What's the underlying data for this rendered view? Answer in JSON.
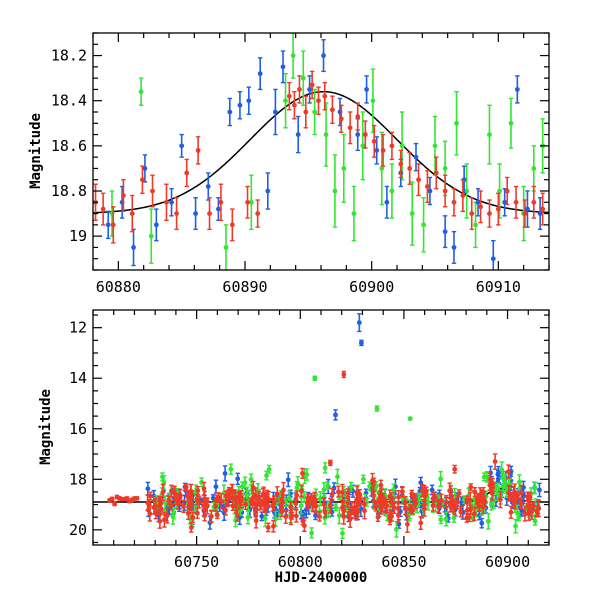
{
  "colors": {
    "green": "#33e633",
    "blue": "#1f5fe6",
    "red": "#f03a28",
    "model": "#000000"
  },
  "chart_data": [
    {
      "type": "scatter",
      "panel": "top-zoom",
      "title": "",
      "xlabel": "",
      "ylabel": "Magnitude",
      "xlim": [
        60878,
        60914
      ],
      "ylim": [
        19.15,
        18.1
      ],
      "y_inverted": true,
      "xticks": [
        60880,
        60890,
        60900,
        60910
      ],
      "yticks": [
        18.2,
        18.4,
        18.6,
        18.8,
        19
      ],
      "ytick_labels": [
        "18.2",
        "18.4",
        "18.6",
        "18.8",
        "19"
      ],
      "model": {
        "name": "",
        "peak_x": 60896.2,
        "peak_mag": 18.36,
        "baseline_mag": 18.9,
        "sigma_days": 5.8
      },
      "series": [
        {
          "color": "green",
          "points": [
            [
              60881.8,
              18.36,
              0.06
            ],
            [
              60879.5,
              18.9,
              0.1
            ],
            [
              60882.6,
              19.0,
              0.12
            ],
            [
              60888.5,
              19.05,
              0.1
            ],
            [
              60890.5,
              18.85,
              0.12
            ],
            [
              60893.2,
              18.4,
              0.12
            ],
            [
              60893.8,
              18.2,
              0.1
            ],
            [
              60894.6,
              18.3,
              0.12
            ],
            [
              60895.5,
              18.45,
              0.1
            ],
            [
              60896.4,
              18.55,
              0.14
            ],
            [
              60897.1,
              18.8,
              0.16
            ],
            [
              60897.8,
              18.7,
              0.15
            ],
            [
              60898.6,
              18.9,
              0.12
            ],
            [
              60899.3,
              18.6,
              0.15
            ],
            [
              60900.1,
              18.4,
              0.14
            ],
            [
              60900.8,
              18.7,
              0.16
            ],
            [
              60901.6,
              18.8,
              0.12
            ],
            [
              60902.4,
              18.6,
              0.15
            ],
            [
              60903.2,
              18.9,
              0.14
            ],
            [
              60904.1,
              18.95,
              0.12
            ],
            [
              60905.0,
              18.6,
              0.13
            ],
            [
              60905.8,
              18.7,
              0.12
            ],
            [
              60906.7,
              18.5,
              0.14
            ],
            [
              60907.5,
              18.8,
              0.12
            ],
            [
              60908.2,
              18.95,
              0.1
            ],
            [
              60909.3,
              18.55,
              0.13
            ],
            [
              60910.1,
              18.8,
              0.12
            ],
            [
              60911.0,
              18.5,
              0.11
            ],
            [
              60912.0,
              18.9,
              0.12
            ],
            [
              60912.8,
              18.7,
              0.1
            ],
            [
              60913.5,
              18.6,
              0.12
            ]
          ]
        },
        {
          "color": "blue",
          "points": [
            [
              60879.2,
              18.95,
              0.06
            ],
            [
              60880.3,
              18.85,
              0.07
            ],
            [
              60881.2,
              19.05,
              0.08
            ],
            [
              60882.1,
              18.7,
              0.06
            ],
            [
              60883.0,
              18.95,
              0.07
            ],
            [
              60884.2,
              18.85,
              0.06
            ],
            [
              60885.0,
              18.6,
              0.05
            ],
            [
              60886.1,
              18.9,
              0.07
            ],
            [
              60887.1,
              18.78,
              0.06
            ],
            [
              60887.9,
              18.88,
              0.05
            ],
            [
              60888.8,
              18.45,
              0.06
            ],
            [
              60889.6,
              18.42,
              0.06
            ],
            [
              60890.3,
              18.4,
              0.06
            ],
            [
              60891.2,
              18.28,
              0.07
            ],
            [
              60891.8,
              18.8,
              0.08
            ],
            [
              60892.4,
              18.45,
              0.1
            ],
            [
              60893.0,
              18.25,
              0.07
            ],
            [
              60894.2,
              18.55,
              0.08
            ],
            [
              60895.1,
              18.35,
              0.06
            ],
            [
              60896.2,
              18.2,
              0.07
            ],
            [
              60897.5,
              18.45,
              0.06
            ],
            [
              60898.9,
              18.55,
              0.07
            ],
            [
              60899.6,
              18.35,
              0.06
            ],
            [
              60900.4,
              18.62,
              0.06
            ],
            [
              60901.2,
              18.85,
              0.07
            ],
            [
              60902.3,
              18.72,
              0.06
            ],
            [
              60903.5,
              18.65,
              0.06
            ],
            [
              60904.6,
              18.8,
              0.06
            ],
            [
              60905.8,
              18.98,
              0.07
            ],
            [
              60906.5,
              19.05,
              0.07
            ],
            [
              60907.3,
              18.75,
              0.06
            ],
            [
              60908.4,
              18.85,
              0.06
            ],
            [
              60909.6,
              19.1,
              0.08
            ],
            [
              60910.5,
              18.85,
              0.06
            ],
            [
              60911.5,
              18.35,
              0.06
            ],
            [
              60912.3,
              18.88,
              0.08
            ],
            [
              60913.3,
              18.9,
              0.07
            ]
          ]
        },
        {
          "color": "red",
          "points": [
            [
              60878.2,
              18.85,
              0.08
            ],
            [
              60878.8,
              18.88,
              0.07
            ],
            [
              60879.6,
              18.95,
              0.08
            ],
            [
              60880.4,
              18.82,
              0.07
            ],
            [
              60881.1,
              18.9,
              0.08
            ],
            [
              60881.9,
              18.75,
              0.06
            ],
            [
              60882.7,
              18.8,
              0.07
            ],
            [
              60883.8,
              18.85,
              0.08
            ],
            [
              60884.6,
              18.9,
              0.07
            ],
            [
              60885.4,
              18.72,
              0.06
            ],
            [
              60886.3,
              18.62,
              0.06
            ],
            [
              60887.2,
              18.9,
              0.07
            ],
            [
              60888.1,
              18.85,
              0.08
            ],
            [
              60889.0,
              18.95,
              0.07
            ],
            [
              60890.2,
              18.85,
              0.07
            ],
            [
              60891.0,
              18.9,
              0.06
            ],
            [
              60893.5,
              18.38,
              0.06
            ],
            [
              60893.9,
              18.42,
              0.06
            ],
            [
              60894.3,
              18.35,
              0.06
            ],
            [
              60894.8,
              18.45,
              0.07
            ],
            [
              60895.3,
              18.33,
              0.06
            ],
            [
              60895.8,
              18.4,
              0.06
            ],
            [
              60896.3,
              18.38,
              0.06
            ],
            [
              60896.9,
              18.44,
              0.06
            ],
            [
              60897.6,
              18.48,
              0.06
            ],
            [
              60898.3,
              18.52,
              0.07
            ],
            [
              60898.9,
              18.47,
              0.06
            ],
            [
              60899.5,
              18.55,
              0.06
            ],
            [
              60900.2,
              18.58,
              0.07
            ],
            [
              60900.9,
              18.62,
              0.07
            ],
            [
              60901.6,
              18.6,
              0.06
            ],
            [
              60902.3,
              18.68,
              0.06
            ],
            [
              60903.0,
              18.7,
              0.07
            ],
            [
              60903.7,
              18.75,
              0.07
            ],
            [
              60904.4,
              18.78,
              0.07
            ],
            [
              60905.1,
              18.72,
              0.07
            ],
            [
              60905.8,
              18.8,
              0.07
            ],
            [
              60906.5,
              18.85,
              0.06
            ],
            [
              60907.2,
              18.82,
              0.07
            ],
            [
              60907.9,
              18.9,
              0.07
            ],
            [
              60908.6,
              18.87,
              0.07
            ],
            [
              60909.3,
              18.9,
              0.06
            ],
            [
              60910.0,
              18.88,
              0.07
            ],
            [
              60910.7,
              18.8,
              0.06
            ],
            [
              60911.4,
              18.85,
              0.07
            ],
            [
              60912.1,
              18.9,
              0.06
            ],
            [
              60912.8,
              18.85,
              0.07
            ],
            [
              60913.5,
              18.88,
              0.07
            ]
          ]
        }
      ]
    },
    {
      "type": "scatter",
      "panel": "bottom-full",
      "title": "",
      "xlabel": "HJD-2400000",
      "ylabel": "Magnitude",
      "xlim": [
        60700,
        60920
      ],
      "ylim": [
        20.6,
        11.3
      ],
      "y_inverted": true,
      "xticks": [
        60750,
        60800,
        60850,
        60900
      ],
      "yticks": [
        12,
        14,
        16,
        18,
        20
      ],
      "model": {
        "name": "",
        "peak_x": 60896.2,
        "peak_mag": 18.36,
        "baseline_mag": 18.9,
        "sigma_days": 5.8
      },
      "outliers": [
        {
          "color": "blue",
          "x": 60828.5,
          "mag": 11.8,
          "err": 0.35
        },
        {
          "color": "blue",
          "x": 60829.5,
          "mag": 12.6,
          "err": 0.1
        },
        {
          "color": "red",
          "x": 60821.0,
          "mag": 13.85,
          "err": 0.12
        },
        {
          "color": "green",
          "x": 60807.0,
          "mag": 14.0,
          "err": 0.08
        },
        {
          "color": "green",
          "x": 60837.0,
          "mag": 15.2,
          "err": 0.1
        },
        {
          "color": "blue",
          "x": 60817.0,
          "mag": 15.45,
          "err": 0.2
        },
        {
          "color": "green",
          "x": 60853.0,
          "mag": 15.6,
          "err": 0.05
        },
        {
          "color": "red",
          "x": 60814.5,
          "mag": 17.35,
          "err": 0.1
        },
        {
          "color": "red",
          "x": 60874.5,
          "mag": 17.6,
          "err": 0.15
        },
        {
          "color": "green",
          "x": 60766.5,
          "mag": 17.6,
          "err": 0.2
        },
        {
          "color": "green",
          "x": 60785.0,
          "mag": 17.6,
          "err": 0.15
        },
        {
          "color": "green",
          "x": 60812.0,
          "mag": 17.55,
          "err": 0.2
        },
        {
          "color": "green",
          "x": 60733.5,
          "mag": 17.9,
          "err": 0.15
        },
        {
          "color": "red",
          "x": 60894.0,
          "mag": 17.3,
          "err": 0.3
        },
        {
          "color": "green",
          "x": 60890.0,
          "mag": 17.9,
          "err": 0.2
        }
      ],
      "bulk": {
        "red_early": {
          "x_range": [
            60708,
            60722
          ],
          "mag": 18.75,
          "scatter": 0.08
        },
        "main": {
          "x_range": [
            60726,
            60916
          ],
          "mag": 18.95,
          "scatter": 0.35
        },
        "late_bump": {
          "x_range": [
            60890,
            60902
          ],
          "mag": 18.4,
          "scatter": 0.2
        }
      }
    }
  ]
}
